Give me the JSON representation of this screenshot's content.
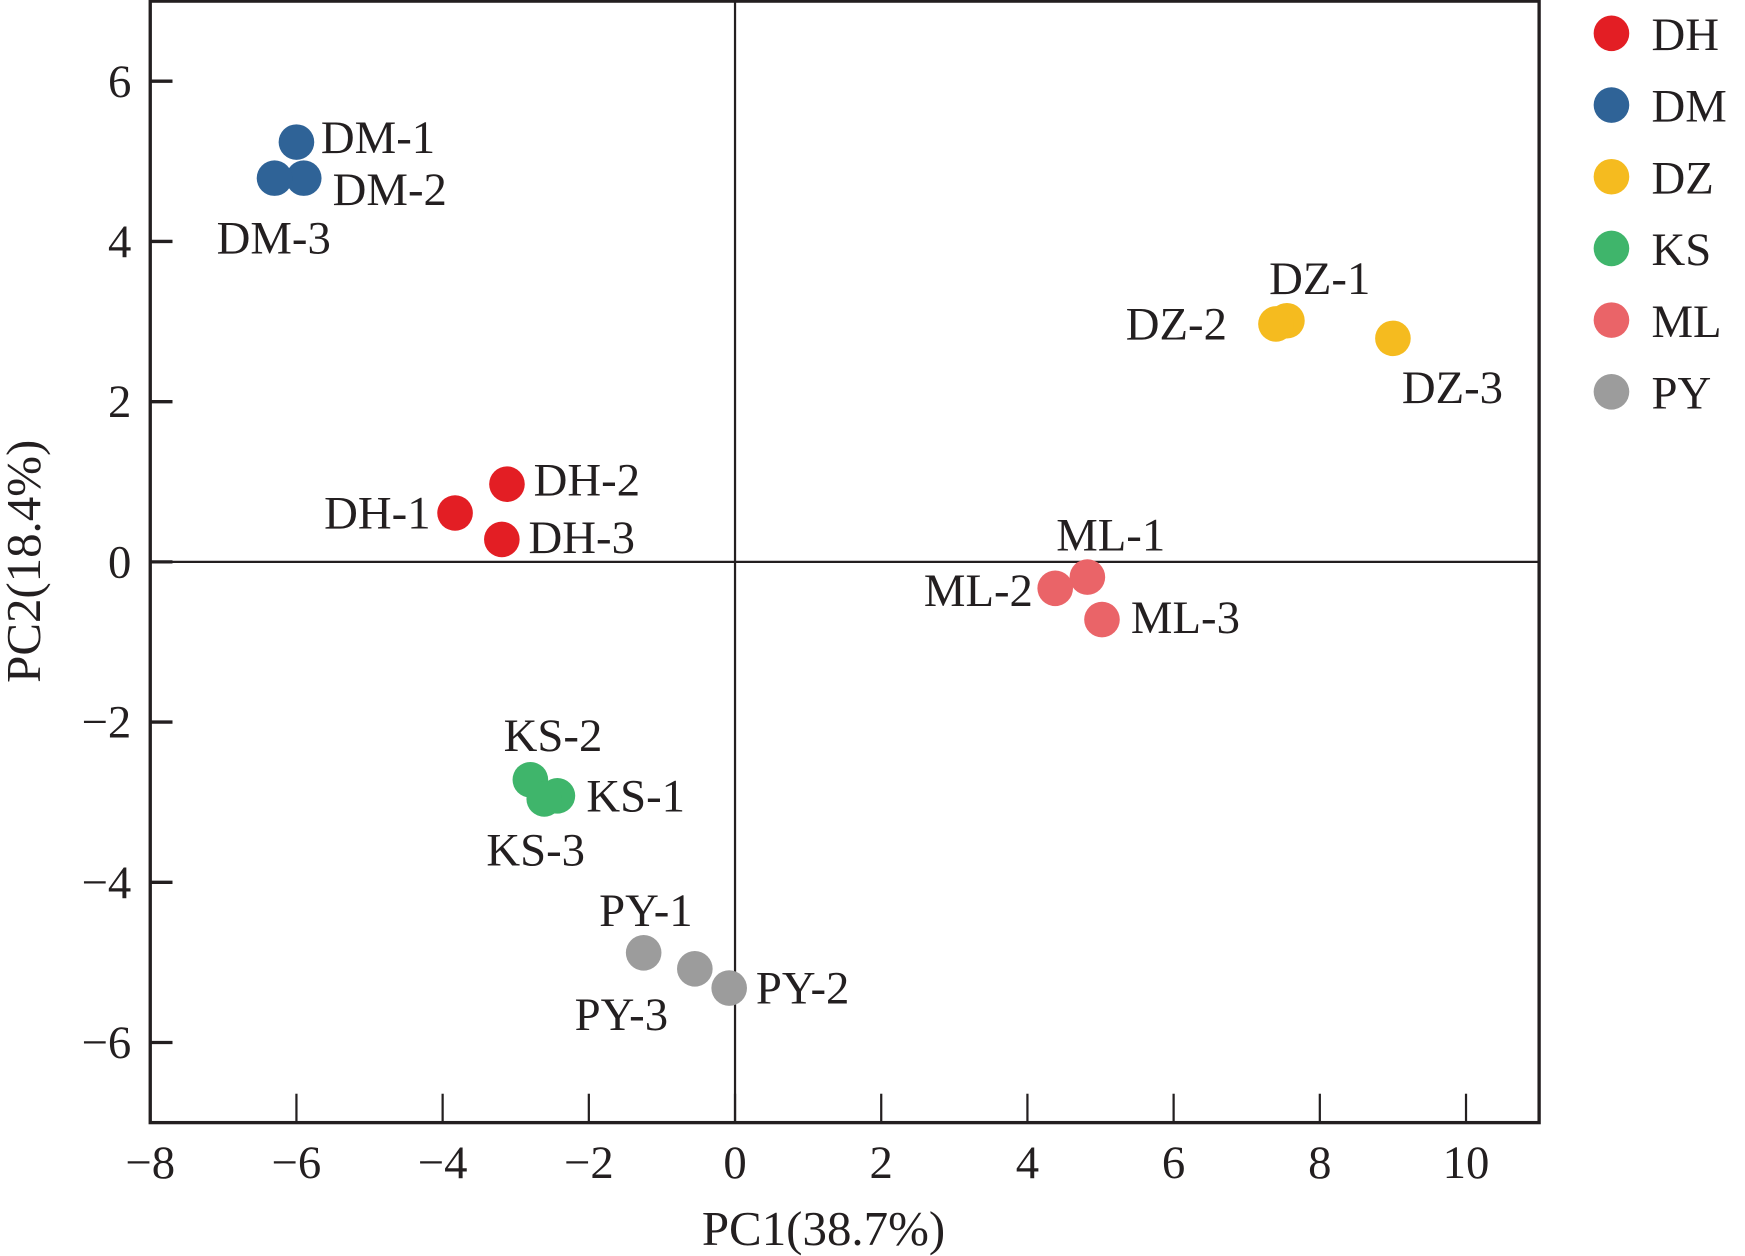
{
  "chart_data": {
    "type": "scatter",
    "title": "",
    "xlabel": "PC1(38.7%)",
    "ylabel": "PC2(18.4%)",
    "xlim": [
      -8,
      11
    ],
    "ylim": [
      -7,
      7
    ],
    "xticks": [
      -8,
      -6,
      -4,
      -2,
      0,
      2,
      4,
      6,
      8,
      10
    ],
    "yticks": [
      -6,
      -4,
      -2,
      0,
      2,
      4,
      6
    ],
    "legend_position": "right",
    "series": [
      {
        "name": "DH",
        "color": "#e31e24",
        "points": [
          {
            "label": "DH-1",
            "x": -3.83,
            "y": 0.61
          },
          {
            "label": "DH-2",
            "x": -3.12,
            "y": 0.97
          },
          {
            "label": "DH-3",
            "x": -3.19,
            "y": 0.28
          }
        ]
      },
      {
        "name": "DM",
        "color": "#2f6397",
        "points": [
          {
            "label": "DM-1",
            "x": -6.0,
            "y": 5.24
          },
          {
            "label": "DM-2",
            "x": -5.9,
            "y": 4.79
          },
          {
            "label": "DM-3",
            "x": -6.3,
            "y": 4.79
          }
        ]
      },
      {
        "name": "DZ",
        "color": "#f5bb1f",
        "points": [
          {
            "label": "DZ-1",
            "x": 7.55,
            "y": 3.01
          },
          {
            "label": "DZ-2",
            "x": 7.4,
            "y": 2.97
          },
          {
            "label": "DZ-3",
            "x": 9.0,
            "y": 2.79
          }
        ]
      },
      {
        "name": "KS",
        "color": "#3fb56b",
        "points": [
          {
            "label": "KS-1",
            "x": -2.43,
            "y": -2.92
          },
          {
            "label": "KS-2",
            "x": -2.8,
            "y": -2.72
          },
          {
            "label": "KS-3",
            "x": -2.61,
            "y": -2.96
          }
        ]
      },
      {
        "name": "ML",
        "color": "#ea6468",
        "points": [
          {
            "label": "ML-1",
            "x": 4.82,
            "y": -0.19
          },
          {
            "label": "ML-2",
            "x": 4.38,
            "y": -0.33
          },
          {
            "label": "ML-3",
            "x": 5.02,
            "y": -0.72
          }
        ]
      },
      {
        "name": "PY",
        "color": "#9c9c9c",
        "points": [
          {
            "label": "PY-1",
            "x": -1.25,
            "y": -4.88
          },
          {
            "label": "PY-2",
            "x": -0.08,
            "y": -5.32
          },
          {
            "label": "PY-3",
            "x": -0.55,
            "y": -5.08
          }
        ]
      }
    ]
  }
}
